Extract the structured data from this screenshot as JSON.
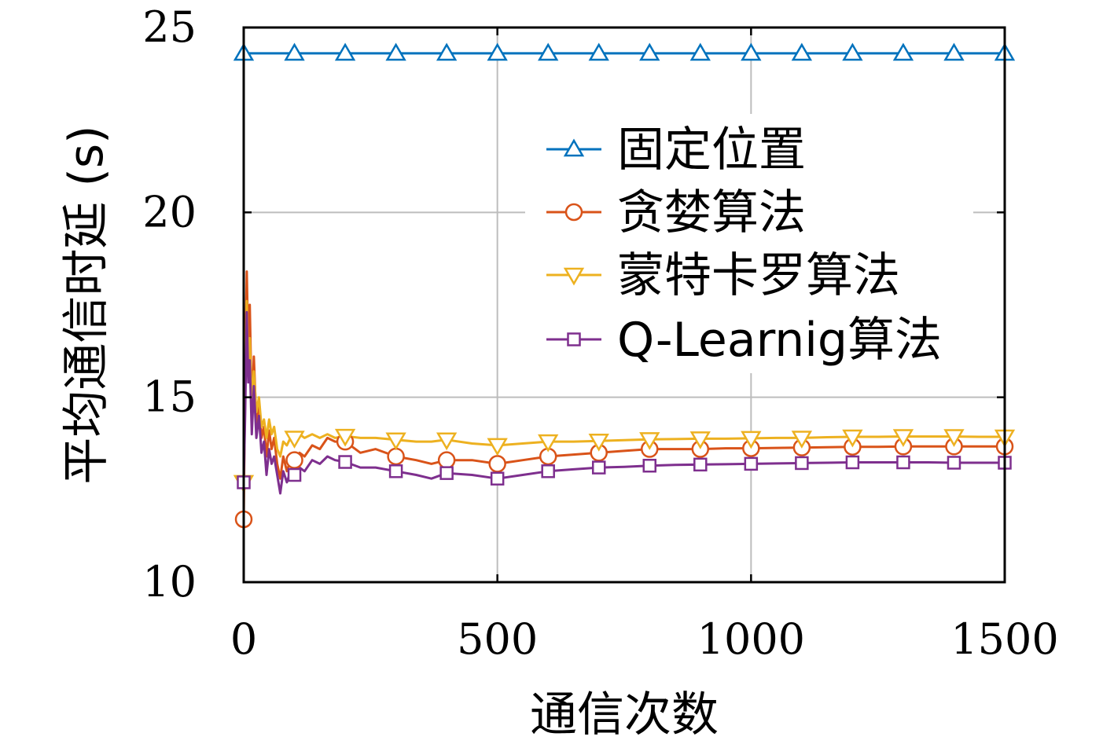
{
  "chart_data": {
    "type": "line",
    "title": "",
    "xlabel": "通信次数",
    "ylabel": "平均通信时延 (s)",
    "xlim": [
      0,
      1500
    ],
    "ylim": [
      10,
      25
    ],
    "xticks": [
      0,
      500,
      1000,
      1500
    ],
    "yticks": [
      10,
      15,
      20,
      25
    ],
    "grid": true,
    "legend_position": "top-right",
    "series": [
      {
        "name": "固定位置",
        "color": "#0072BD",
        "marker": "triangle-up",
        "x": [
          0,
          1500
        ],
        "y": [
          24.3,
          24.3
        ]
      },
      {
        "name": "贪婪算法",
        "color": "#D95319",
        "marker": "circle",
        "x": [
          0,
          3,
          6,
          9,
          12,
          16,
          20,
          25,
          30,
          35,
          40,
          45,
          50,
          55,
          60,
          66,
          72,
          78,
          85,
          92,
          100,
          110,
          120,
          135,
          150,
          165,
          180,
          200,
          230,
          260,
          300,
          340,
          370,
          400,
          450,
          500,
          550,
          600,
          650,
          700,
          750,
          800,
          850,
          900,
          950,
          1000,
          1050,
          1100,
          1150,
          1200,
          1250,
          1300,
          1350,
          1400,
          1450,
          1500
        ],
        "y": [
          11.7,
          15.8,
          18.4,
          16.2,
          17.5,
          14.6,
          16.1,
          14.3,
          14.9,
          13.9,
          14.2,
          13.4,
          14.1,
          13.6,
          13.9,
          13.2,
          12.8,
          13.4,
          13.0,
          13.3,
          13.3,
          13.5,
          13.4,
          13.7,
          13.6,
          13.9,
          13.8,
          13.8,
          13.5,
          13.6,
          13.4,
          13.3,
          13.2,
          13.3,
          13.3,
          13.2,
          13.3,
          13.4,
          13.45,
          13.5,
          13.55,
          13.6,
          13.6,
          13.6,
          13.62,
          13.62,
          13.63,
          13.64,
          13.65,
          13.66,
          13.66,
          13.67,
          13.67,
          13.67,
          13.67,
          13.67
        ]
      },
      {
        "name": "蒙特卡罗算法",
        "color": "#EDB120",
        "marker": "triangle-down",
        "x": [
          0,
          3,
          6,
          9,
          12,
          16,
          20,
          25,
          30,
          35,
          40,
          45,
          50,
          55,
          60,
          66,
          72,
          78,
          85,
          92,
          100,
          110,
          120,
          135,
          150,
          165,
          180,
          200,
          230,
          260,
          300,
          340,
          370,
          400,
          450,
          500,
          550,
          600,
          650,
          700,
          750,
          800,
          850,
          900,
          950,
          1000,
          1050,
          1100,
          1150,
          1200,
          1250,
          1300,
          1350,
          1400,
          1450,
          1500
        ],
        "y": [
          12.7,
          15.3,
          17.6,
          15.8,
          16.6,
          14.8,
          15.7,
          14.6,
          15.0,
          14.2,
          14.4,
          13.9,
          14.4,
          14.0,
          14.2,
          13.6,
          13.4,
          13.8,
          13.7,
          13.9,
          13.9,
          14.0,
          13.9,
          14.0,
          13.9,
          14.0,
          13.9,
          13.95,
          13.9,
          13.9,
          13.85,
          13.8,
          13.8,
          13.85,
          13.75,
          13.7,
          13.75,
          13.8,
          13.8,
          13.82,
          13.84,
          13.86,
          13.87,
          13.88,
          13.88,
          13.89,
          13.9,
          13.9,
          13.92,
          13.93,
          13.93,
          13.94,
          13.94,
          13.94,
          13.93,
          13.93
        ]
      },
      {
        "name": "Q-Learnig算法",
        "color": "#7E2F8E",
        "marker": "square",
        "x": [
          0,
          3,
          6,
          9,
          12,
          16,
          20,
          25,
          30,
          35,
          40,
          45,
          50,
          55,
          60,
          66,
          72,
          78,
          85,
          92,
          100,
          110,
          120,
          135,
          150,
          165,
          180,
          200,
          230,
          260,
          300,
          340,
          370,
          400,
          450,
          500,
          550,
          600,
          650,
          700,
          750,
          800,
          850,
          900,
          950,
          1000,
          1050,
          1100,
          1150,
          1200,
          1250,
          1300,
          1350,
          1400,
          1450,
          1500
        ],
        "y": [
          12.7,
          14.6,
          17.3,
          15.4,
          16.0,
          14.0,
          15.3,
          13.9,
          14.5,
          13.5,
          13.8,
          12.9,
          13.6,
          13.2,
          13.4,
          12.9,
          12.4,
          13.0,
          12.7,
          13.0,
          12.9,
          13.1,
          13.0,
          13.3,
          13.2,
          13.4,
          13.3,
          13.25,
          13.1,
          13.1,
          13.0,
          12.9,
          12.8,
          12.95,
          12.9,
          12.8,
          12.9,
          13.0,
          13.05,
          13.1,
          13.12,
          13.15,
          13.17,
          13.18,
          13.19,
          13.2,
          13.21,
          13.22,
          13.23,
          13.24,
          13.24,
          13.24,
          13.24,
          13.23,
          13.23,
          13.23
        ]
      }
    ]
  }
}
